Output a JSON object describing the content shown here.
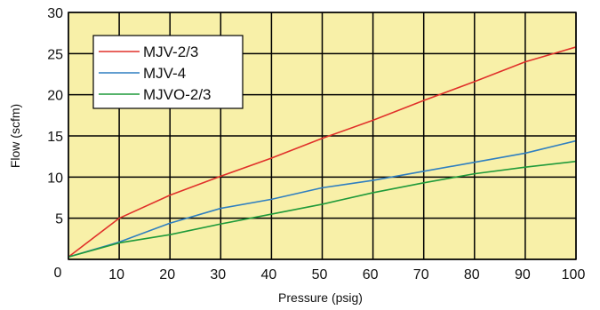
{
  "chart_data": {
    "type": "line",
    "xlabel": "Pressure (psig)",
    "ylabel": "Flow (scfm)",
    "xlim": [
      0,
      100
    ],
    "ylim": [
      0,
      30
    ],
    "xticks": [
      0,
      10,
      20,
      30,
      40,
      50,
      60,
      70,
      80,
      90,
      100
    ],
    "yticks": [
      0,
      5,
      10,
      15,
      20,
      25,
      30
    ],
    "grid": true,
    "legend": "top-left",
    "background_color": "#f8f0a8",
    "grid_color": "#000000",
    "series": [
      {
        "name": "MJV-2/3",
        "color": "#e0302a",
        "x": [
          0,
          10,
          20,
          30,
          40,
          50,
          60,
          70,
          80,
          90,
          100
        ],
        "y": [
          0.3,
          5.0,
          7.8,
          10.1,
          12.3,
          14.7,
          16.9,
          19.3,
          21.6,
          24.0,
          25.8
        ]
      },
      {
        "name": "MJV-4",
        "color": "#2f7fc0",
        "x": [
          0,
          10,
          20,
          30,
          40,
          50,
          60,
          70,
          80,
          90,
          100
        ],
        "y": [
          0.3,
          2.1,
          4.4,
          6.2,
          7.3,
          8.7,
          9.6,
          10.7,
          11.8,
          12.9,
          14.4
        ]
      },
      {
        "name": "MJVO-2/3",
        "color": "#1f9a3a",
        "x": [
          0,
          10,
          20,
          30,
          40,
          50,
          60,
          70,
          80,
          90,
          100
        ],
        "y": [
          0.3,
          2.0,
          3.0,
          4.3,
          5.5,
          6.7,
          8.1,
          9.3,
          10.4,
          11.2,
          11.9
        ]
      }
    ]
  }
}
